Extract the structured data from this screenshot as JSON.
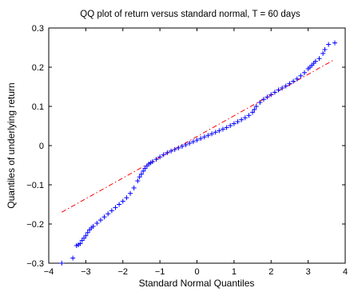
{
  "chart_data": {
    "type": "scatter",
    "title": "QQ plot of return versus standard normal, T = 60 days",
    "xlabel": "Standard Normal Quantiles",
    "ylabel": "Quantiles of underlying return",
    "xlim": [
      -4,
      4
    ],
    "ylim": [
      -0.3,
      0.3
    ],
    "xticks": [
      -4,
      -3,
      -2,
      -1,
      0,
      1,
      2,
      3,
      4
    ],
    "yticks": [
      -0.3,
      -0.2,
      -0.1,
      0,
      0.1,
      0.2,
      0.3
    ],
    "xtick_labels": [
      "−4",
      "−3",
      "−2",
      "−1",
      "0",
      "1",
      "2",
      "3",
      "4"
    ],
    "ytick_labels": [
      "−0.3",
      "−0.2",
      "−0.1",
      "0",
      "0.1",
      "0.2",
      "0.3"
    ],
    "grid": false,
    "marker_color": "#0000ff",
    "reference_line_color": "#ff0000",
    "reference_line": {
      "style": "dash-dot",
      "x": [
        -3.65,
        3.72
      ],
      "y": [
        -0.17,
        0.22
      ]
    },
    "points": {
      "x": [
        -3.65,
        -3.35,
        -3.25,
        -3.2,
        -3.15,
        -3.1,
        -3.05,
        -3.0,
        -2.95,
        -2.9,
        -2.85,
        -2.8,
        -2.7,
        -2.6,
        -2.5,
        -2.4,
        -2.3,
        -2.2,
        -2.1,
        -2.0,
        -1.9,
        -1.8,
        -1.7,
        -1.6,
        -1.55,
        -1.5,
        -1.45,
        -1.4,
        -1.35,
        -1.3,
        -1.25,
        -1.2,
        -1.1,
        -1.0,
        -0.9,
        -0.8,
        -0.7,
        -0.6,
        -0.5,
        -0.4,
        -0.3,
        -0.2,
        -0.1,
        0.0,
        0.1,
        0.2,
        0.3,
        0.4,
        0.5,
        0.6,
        0.7,
        0.8,
        0.9,
        1.0,
        1.1,
        1.2,
        1.3,
        1.4,
        1.5,
        1.55,
        1.6,
        1.7,
        1.8,
        1.9,
        2.0,
        2.1,
        2.2,
        2.3,
        2.4,
        2.5,
        2.6,
        2.7,
        2.8,
        2.9,
        3.0,
        3.05,
        3.1,
        3.15,
        3.2,
        3.3,
        3.4,
        3.45,
        3.55,
        3.72
      ],
      "y": [
        -0.3,
        -0.287,
        -0.255,
        -0.253,
        -0.25,
        -0.242,
        -0.236,
        -0.23,
        -0.222,
        -0.215,
        -0.21,
        -0.206,
        -0.198,
        -0.19,
        -0.182,
        -0.174,
        -0.166,
        -0.158,
        -0.15,
        -0.142,
        -0.133,
        -0.122,
        -0.108,
        -0.09,
        -0.08,
        -0.073,
        -0.065,
        -0.058,
        -0.052,
        -0.047,
        -0.044,
        -0.041,
        -0.035,
        -0.029,
        -0.023,
        -0.018,
        -0.014,
        -0.01,
        -0.006,
        -0.002,
        0.002,
        0.006,
        0.01,
        0.014,
        0.018,
        0.022,
        0.026,
        0.03,
        0.034,
        0.038,
        0.042,
        0.046,
        0.051,
        0.056,
        0.061,
        0.066,
        0.071,
        0.077,
        0.085,
        0.092,
        0.1,
        0.11,
        0.118,
        0.124,
        0.13,
        0.136,
        0.142,
        0.147,
        0.152,
        0.158,
        0.164,
        0.17,
        0.178,
        0.186,
        0.196,
        0.2,
        0.205,
        0.21,
        0.215,
        0.222,
        0.235,
        0.245,
        0.258,
        0.262
      ]
    }
  }
}
